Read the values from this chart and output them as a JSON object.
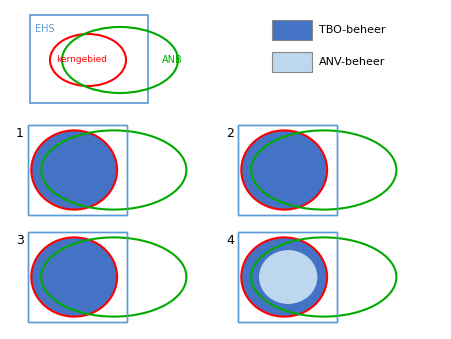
{
  "bg_color": "#ffffff",
  "tbo_color": "#4472C4",
  "anv_color": "#BDD7EE",
  "rect_edge_color": "#5B9BD5",
  "kern_color": "#FF0000",
  "anb_color": "#00AA00",
  "legend_tbo_label": "TBO-beheer",
  "legend_anv_label": "ANV-beheer",
  "ehs_label": "EHS",
  "kern_label": "kerngebied",
  "anb_label": "ANB",
  "scenario_labels": [
    "1",
    "2",
    "3",
    "4"
  ],
  "fig_w": 4.52,
  "fig_h": 3.39,
  "dpi": 100
}
